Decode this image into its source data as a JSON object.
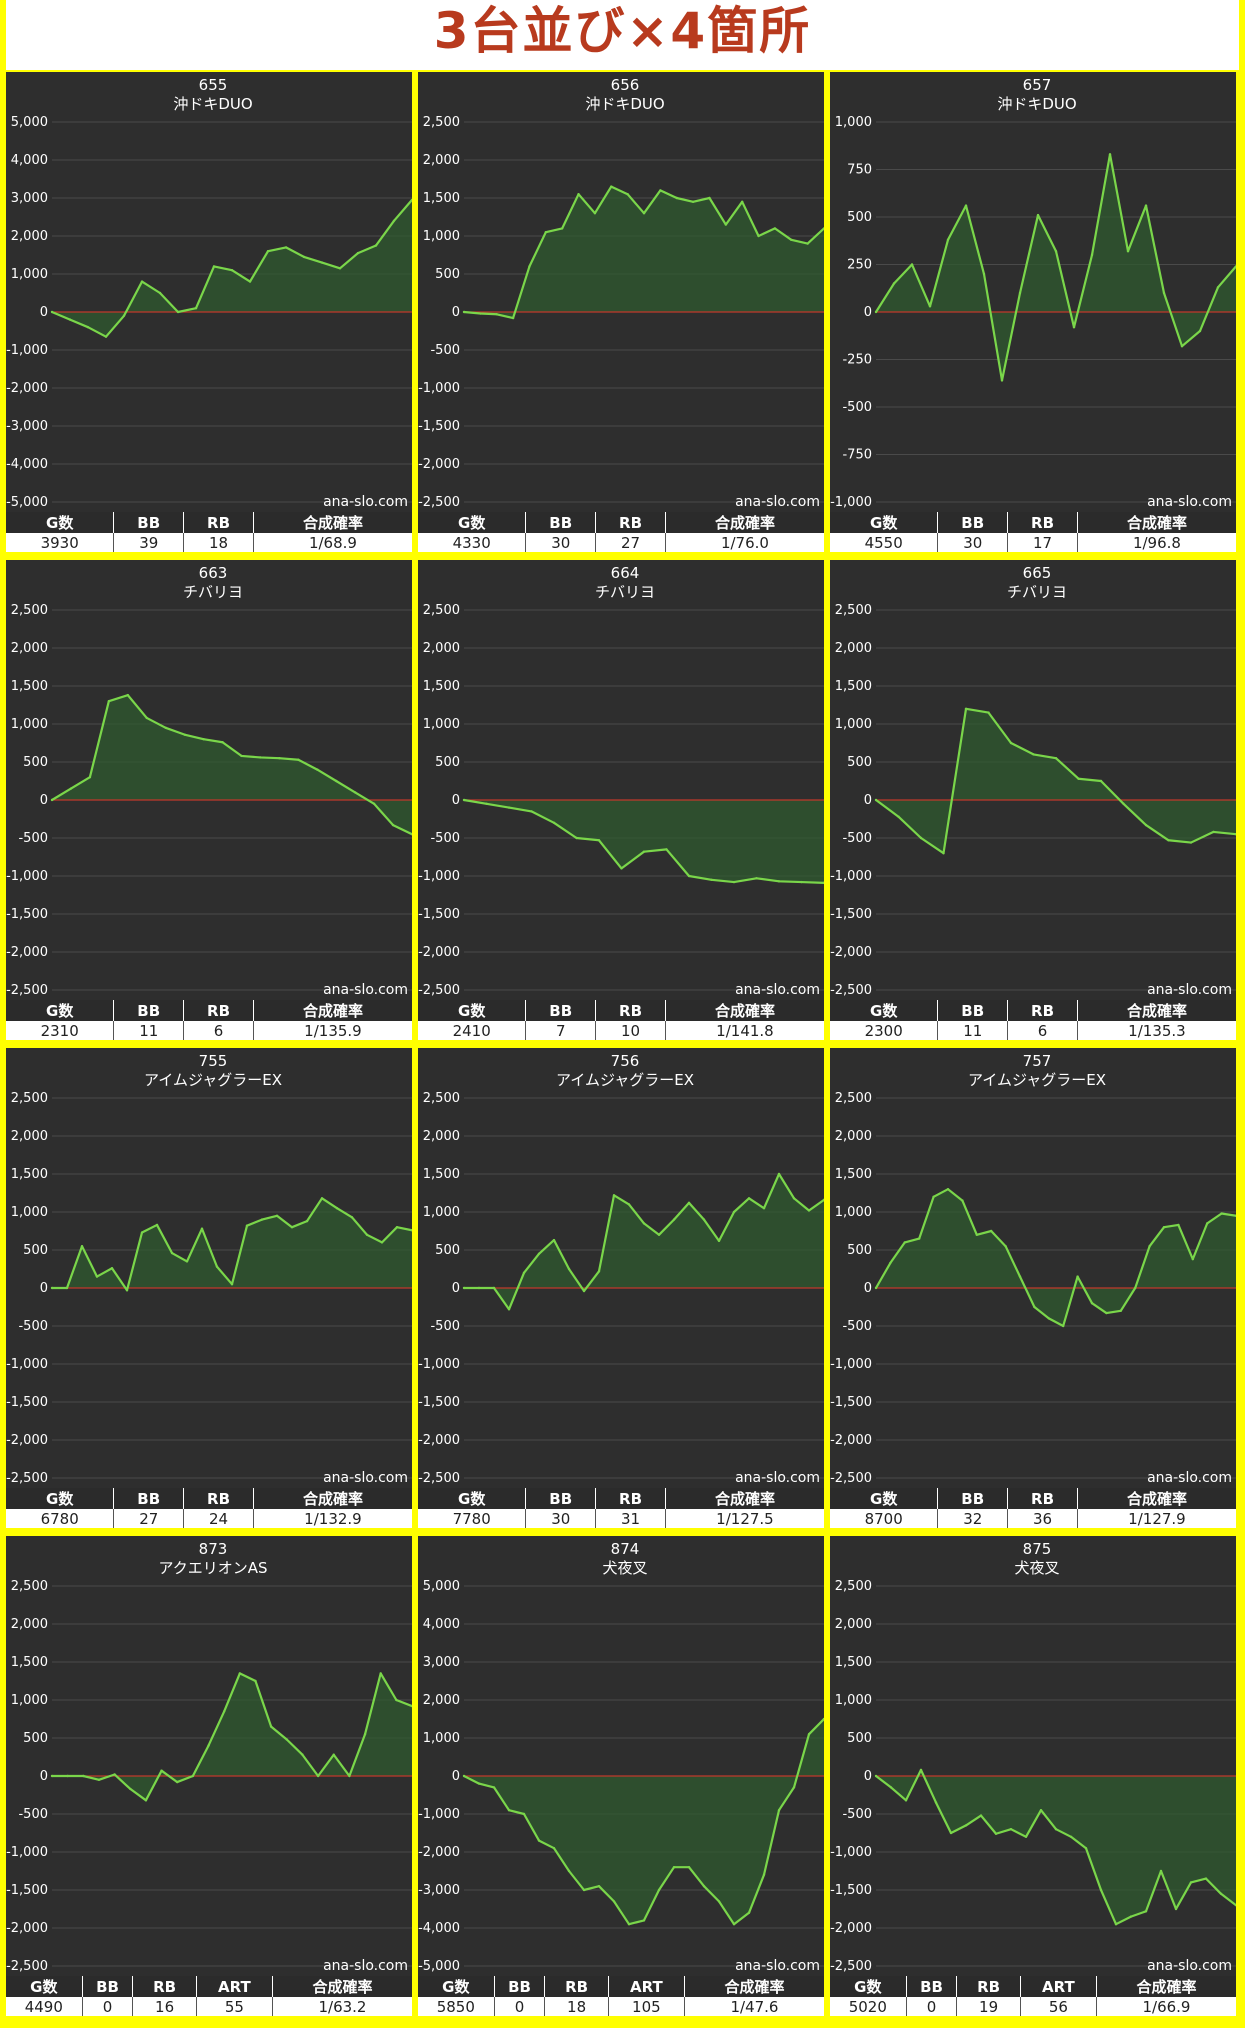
{
  "page": {
    "title": "3台並び×4箇所"
  },
  "watermark": "ana-slo.com",
  "chart_data": [
    {
      "type": "area",
      "number": "655",
      "name": "沖ドキDUO",
      "yticks": [
        5000,
        4000,
        3000,
        2000,
        1000,
        0,
        -1000,
        -2000,
        -3000,
        -4000,
        -5000
      ],
      "ytick_labels": [
        "5,000",
        "4,000",
        "3,000",
        "2,000",
        "1,000",
        "0",
        "-1,000",
        "-2,000",
        "-3,000",
        "-4,000",
        "-5,000"
      ],
      "ylim": [
        -5000,
        5000
      ],
      "values": [
        0,
        -200,
        -400,
        -650,
        -100,
        800,
        500,
        0,
        100,
        1200,
        1100,
        800,
        1600,
        1700,
        1450,
        1300,
        1150,
        1550,
        1750,
        2400,
        2950
      ],
      "table": {
        "headers": [
          "G数",
          "BB",
          "RB",
          "合成確率"
        ],
        "values": [
          "3930",
          "39",
          "18",
          "1/68.9"
        ],
        "widths": [
          85,
          55,
          55,
          125
        ]
      }
    },
    {
      "type": "area",
      "number": "656",
      "name": "沖ドキDUO",
      "yticks": [
        2500,
        2000,
        1500,
        1000,
        500,
        0,
        -500,
        -1000,
        -1500,
        -2000,
        -2500
      ],
      "ytick_labels": [
        "2,500",
        "2,000",
        "1,500",
        "1,000",
        "500",
        "0",
        "-500",
        "-1,000",
        "-1,500",
        "-2,000",
        "-2,500"
      ],
      "ylim": [
        -2500,
        2500
      ],
      "values": [
        0,
        -20,
        -30,
        -80,
        600,
        1050,
        1100,
        1550,
        1300,
        1650,
        1550,
        1300,
        1600,
        1500,
        1450,
        1500,
        1150,
        1450,
        1000,
        1100,
        950,
        900,
        1100
      ],
      "table": {
        "headers": [
          "G数",
          "BB",
          "RB",
          "合成確率"
        ],
        "values": [
          "4330",
          "30",
          "27",
          "1/76.0"
        ],
        "widths": [
          85,
          55,
          55,
          125
        ]
      }
    },
    {
      "type": "area",
      "number": "657",
      "name": "沖ドキDUO",
      "yticks": [
        1000,
        750,
        500,
        250,
        0,
        -250,
        -500,
        -750,
        -1000
      ],
      "ytick_labels": [
        "1,000",
        "750",
        "500",
        "250",
        "0",
        "-250",
        "-500",
        "-750",
        "-1,000"
      ],
      "ylim": [
        -1000,
        1000
      ],
      "values": [
        0,
        150,
        250,
        30,
        380,
        560,
        200,
        -360,
        100,
        510,
        320,
        -80,
        300,
        830,
        320,
        560,
        100,
        -180,
        -100,
        130,
        240
      ],
      "table": {
        "headers": [
          "G数",
          "BB",
          "RB",
          "合成確率"
        ],
        "values": [
          "4550",
          "30",
          "17",
          "1/96.8"
        ],
        "widths": [
          85,
          55,
          55,
          125
        ]
      }
    },
    {
      "type": "area",
      "number": "663",
      "name": "チバリヨ",
      "yticks": [
        2500,
        2000,
        1500,
        1000,
        500,
        0,
        -500,
        -1000,
        -1500,
        -2000,
        -2500
      ],
      "ytick_labels": [
        "2,500",
        "2,000",
        "1,500",
        "1,000",
        "500",
        "0",
        "-500",
        "-1,000",
        "-1,500",
        "-2,000",
        "-2,500"
      ],
      "ylim": [
        -2500,
        2500
      ],
      "values": [
        0,
        150,
        300,
        1300,
        1380,
        1080,
        950,
        860,
        800,
        760,
        580,
        560,
        550,
        530,
        400,
        250,
        100,
        -50,
        -330,
        -450
      ],
      "table": {
        "headers": [
          "G数",
          "BB",
          "RB",
          "合成確率"
        ],
        "values": [
          "2310",
          "11",
          "6",
          "1/135.9"
        ],
        "widths": [
          85,
          55,
          55,
          125
        ]
      }
    },
    {
      "type": "area",
      "number": "664",
      "name": "チバリヨ",
      "yticks": [
        2500,
        2000,
        1500,
        1000,
        500,
        0,
        -500,
        -1000,
        -1500,
        -2000,
        -2500
      ],
      "ytick_labels": [
        "2,500",
        "2,000",
        "1,500",
        "1,000",
        "500",
        "0",
        "-500",
        "-1,000",
        "-1,500",
        "-2,000",
        "-2,500"
      ],
      "ylim": [
        -2500,
        2500
      ],
      "values": [
        0,
        -50,
        -100,
        -150,
        -300,
        -500,
        -530,
        -900,
        -680,
        -650,
        -1000,
        -1050,
        -1080,
        -1030,
        -1070,
        -1080,
        -1090
      ],
      "table": {
        "headers": [
          "G数",
          "BB",
          "RB",
          "合成確率"
        ],
        "values": [
          "2410",
          "7",
          "10",
          "1/141.8"
        ],
        "widths": [
          85,
          55,
          55,
          125
        ]
      }
    },
    {
      "type": "area",
      "number": "665",
      "name": "チバリヨ",
      "yticks": [
        2500,
        2000,
        1500,
        1000,
        500,
        0,
        -500,
        -1000,
        -1500,
        -2000,
        -2500
      ],
      "ytick_labels": [
        "2,500",
        "2,000",
        "1,500",
        "1,000",
        "500",
        "0",
        "-500",
        "-1,000",
        "-1,500",
        "-2,000",
        "-2,500"
      ],
      "ylim": [
        -2500,
        2500
      ],
      "values": [
        0,
        -220,
        -500,
        -700,
        1200,
        1150,
        750,
        600,
        550,
        280,
        250,
        -50,
        -330,
        -530,
        -560,
        -420,
        -450
      ],
      "table": {
        "headers": [
          "G数",
          "BB",
          "RB",
          "合成確率"
        ],
        "values": [
          "2300",
          "11",
          "6",
          "1/135.3"
        ],
        "widths": [
          85,
          55,
          55,
          125
        ]
      }
    },
    {
      "type": "area",
      "number": "755",
      "name": "アイムジャグラーEX",
      "yticks": [
        2500,
        2000,
        1500,
        1000,
        500,
        0,
        -500,
        -1000,
        -1500,
        -2000,
        -2500
      ],
      "ytick_labels": [
        "2,500",
        "2,000",
        "1,500",
        "1,000",
        "500",
        "0",
        "-500",
        "-1,000",
        "-1,500",
        "-2,000",
        "-2,500"
      ],
      "ylim": [
        -2500,
        2500
      ],
      "values": [
        0,
        0,
        550,
        150,
        260,
        -30,
        730,
        830,
        460,
        350,
        780,
        280,
        50,
        820,
        900,
        950,
        800,
        880,
        1180,
        1050,
        930,
        700,
        600,
        800,
        760
      ],
      "table": {
        "headers": [
          "G数",
          "BB",
          "RB",
          "合成確率"
        ],
        "values": [
          "6780",
          "27",
          "24",
          "1/132.9"
        ],
        "widths": [
          85,
          55,
          55,
          125
        ]
      }
    },
    {
      "type": "area",
      "number": "756",
      "name": "アイムジャグラーEX",
      "yticks": [
        2500,
        2000,
        1500,
        1000,
        500,
        0,
        -500,
        -1000,
        -1500,
        -2000,
        -2500
      ],
      "ytick_labels": [
        "2,500",
        "2,000",
        "1,500",
        "1,000",
        "500",
        "0",
        "-500",
        "-1,000",
        "-1,500",
        "-2,000",
        "-2,500"
      ],
      "ylim": [
        -2500,
        2500
      ],
      "values": [
        0,
        0,
        0,
        -280,
        200,
        450,
        630,
        250,
        -40,
        220,
        1220,
        1100,
        850,
        700,
        900,
        1120,
        900,
        620,
        1000,
        1180,
        1050,
        1500,
        1180,
        1020,
        1160
      ],
      "table": {
        "headers": [
          "G数",
          "BB",
          "RB",
          "合成確率"
        ],
        "values": [
          "7780",
          "30",
          "31",
          "1/127.5"
        ],
        "widths": [
          85,
          55,
          55,
          125
        ]
      }
    },
    {
      "type": "area",
      "number": "757",
      "name": "アイムジャグラーEX",
      "yticks": [
        2500,
        2000,
        1500,
        1000,
        500,
        0,
        -500,
        -1000,
        -1500,
        -2000,
        -2500
      ],
      "ytick_labels": [
        "2,500",
        "2,000",
        "1,500",
        "1,000",
        "500",
        "0",
        "-500",
        "-1,000",
        "-1,500",
        "-2,000",
        "-2,500"
      ],
      "ylim": [
        -2500,
        2500
      ],
      "values": [
        0,
        330,
        600,
        650,
        1200,
        1300,
        1150,
        700,
        750,
        550,
        150,
        -250,
        -400,
        -500,
        150,
        -200,
        -330,
        -300,
        0,
        550,
        800,
        830,
        380,
        850,
        980,
        950
      ],
      "table": {
        "headers": [
          "G数",
          "BB",
          "RB",
          "合成確率"
        ],
        "values": [
          "8700",
          "32",
          "36",
          "1/127.9"
        ],
        "widths": [
          85,
          55,
          55,
          125
        ]
      }
    },
    {
      "type": "area",
      "number": "873",
      "name": "アクエリオンAS",
      "yticks": [
        2500,
        2000,
        1500,
        1000,
        500,
        0,
        -500,
        -1000,
        -1500,
        -2000,
        -2500
      ],
      "ytick_labels": [
        "2,500",
        "2,000",
        "1,500",
        "1,000",
        "500",
        "0",
        "-500",
        "-1,000",
        "-1,500",
        "-2,000",
        "-2,500"
      ],
      "ylim": [
        -2500,
        2500
      ],
      "values": [
        0,
        0,
        0,
        -50,
        20,
        -170,
        -320,
        70,
        -80,
        0,
        400,
        850,
        1350,
        1250,
        650,
        480,
        280,
        0,
        280,
        0,
        550,
        1350,
        1000,
        920
      ],
      "table": {
        "headers": [
          "G数",
          "BB",
          "RB",
          "ART",
          "合成確率"
        ],
        "values": [
          "4490",
          "0",
          "16",
          "55",
          "1/63.2"
        ],
        "widths": [
          60,
          40,
          50,
          60,
          110
        ]
      }
    },
    {
      "type": "area",
      "number": "874",
      "name": "犬夜叉",
      "yticks": [
        5000,
        4000,
        3000,
        2000,
        1000,
        0,
        -1000,
        -2000,
        -3000,
        -4000,
        -5000
      ],
      "ytick_labels": [
        "5,000",
        "4,000",
        "3,000",
        "2,000",
        "1,000",
        "0",
        "-1,000",
        "-2,000",
        "-3,000",
        "-4,000",
        "-5,000"
      ],
      "ylim": [
        -5000,
        5000
      ],
      "values": [
        0,
        -200,
        -300,
        -900,
        -1000,
        -1700,
        -1900,
        -2500,
        -3000,
        -2900,
        -3300,
        -3900,
        -3800,
        -3000,
        -2400,
        -2400,
        -2900,
        -3300,
        -3900,
        -3600,
        -2600,
        -900,
        -300,
        1100,
        1500
      ],
      "table": {
        "headers": [
          "G数",
          "BB",
          "RB",
          "ART",
          "合成確率"
        ],
        "values": [
          "5850",
          "0",
          "18",
          "105",
          "1/47.6"
        ],
        "widths": [
          60,
          40,
          50,
          60,
          110
        ]
      }
    },
    {
      "type": "area",
      "number": "875",
      "name": "犬夜叉",
      "yticks": [
        2500,
        2000,
        1500,
        1000,
        500,
        0,
        -500,
        -1000,
        -1500,
        -2000,
        -2500
      ],
      "ytick_labels": [
        "2,500",
        "2,000",
        "1,500",
        "1,000",
        "500",
        "0",
        "-500",
        "-1,000",
        "-1,500",
        "-2,000",
        "-2,500"
      ],
      "ylim": [
        -2500,
        2500
      ],
      "values": [
        0,
        -150,
        -320,
        80,
        -350,
        -750,
        -650,
        -520,
        -760,
        -700,
        -800,
        -450,
        -700,
        -800,
        -950,
        -1500,
        -1950,
        -1850,
        -1780,
        -1250,
        -1750,
        -1400,
        -1350,
        -1550,
        -1700
      ],
      "table": {
        "headers": [
          "G数",
          "BB",
          "RB",
          "ART",
          "合成確率"
        ],
        "values": [
          "5020",
          "0",
          "19",
          "56",
          "1/66.9"
        ],
        "widths": [
          60,
          40,
          50,
          60,
          110
        ]
      }
    }
  ]
}
